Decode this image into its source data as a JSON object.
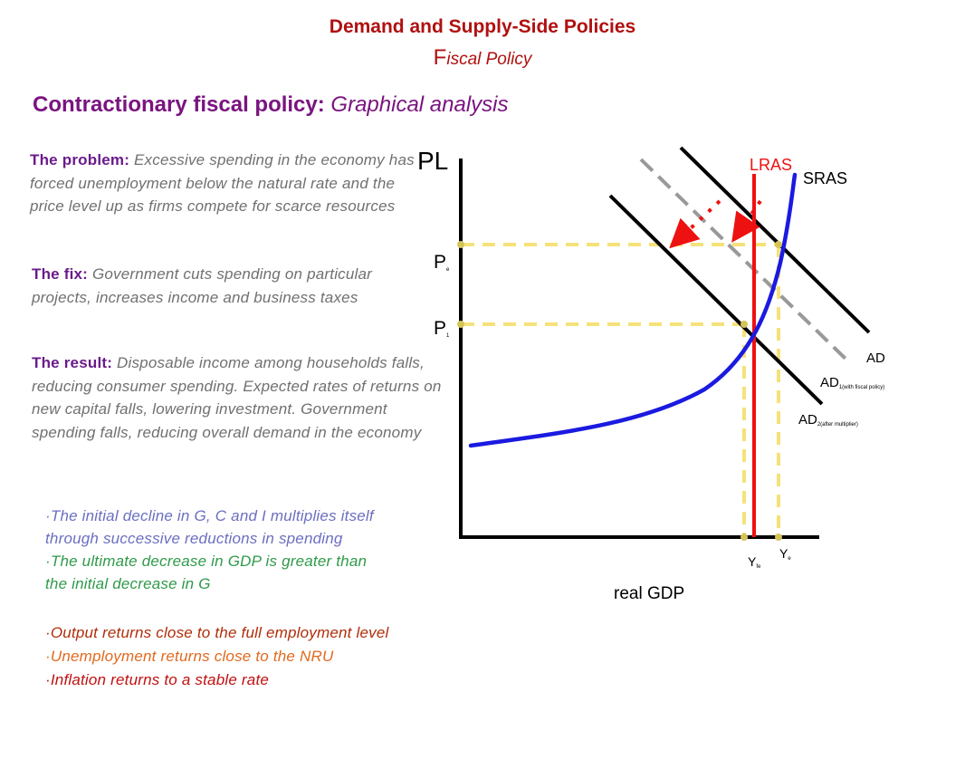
{
  "header": {
    "title": "Demand and Supply-Side Policies",
    "subtitle_cap": "F",
    "subtitle_rest": "iscal Policy",
    "heading_bold": "Contractionary fiscal policy:",
    "heading_italic": " Graphical analysis"
  },
  "text": {
    "problem_label": "The problem:",
    "problem_body": " Excessive spending in the economy has forced unemployment below the natural rate and the price level up as firms compete for scarce resources",
    "fix_label": "The fix:",
    "fix_body": " Government cuts spending on particular projects, increases income and business taxes",
    "result_label": "The result:",
    "result_body": " Disposable income among households falls, reducing consumer spending. Expected rates of returns on new capital falls, lowering investment. Government spending falls, reducing overall demand in the economy"
  },
  "bullets": {
    "b1a": "·The initial decline in G, C and I multiplies itself",
    "b1b": "through successive reductions in spending",
    "b2a": "·The ultimate decrease in GDP is greater than",
    "b2b": "the initial decrease in G",
    "b3a": "·Output returns close to the full employment level",
    "b3b": "·Unemployment returns close to the NRU",
    "b3c": "·Inflation returns to a stable rate"
  },
  "diagram": {
    "y_axis_label": "PL",
    "x_axis_label": "real GDP",
    "lras_label": "LRAS",
    "sras_label": "SRAS",
    "ad_label": "AD",
    "ad1_label": "AD",
    "ad1_sub": "1(with fiscal policy)",
    "ad2_label": "AD",
    "ad2_sub": "2(after multiplier)",
    "pe_label": "P",
    "pe_sub": "e",
    "p1_label": "P",
    "p1_sub": "1",
    "yfe_label": "Y",
    "yfe_sub": "fe",
    "ye_label": "Y",
    "ye_sub": "e"
  },
  "colors": {
    "title": "#b01010",
    "heading": "#7a1480",
    "lras": "#ee1111",
    "sras": "#1a1ae0",
    "ad_lines": "#000000",
    "ad1_dashed": "#999999",
    "guides": "#f5e27a",
    "arrows": "#ee1111"
  }
}
